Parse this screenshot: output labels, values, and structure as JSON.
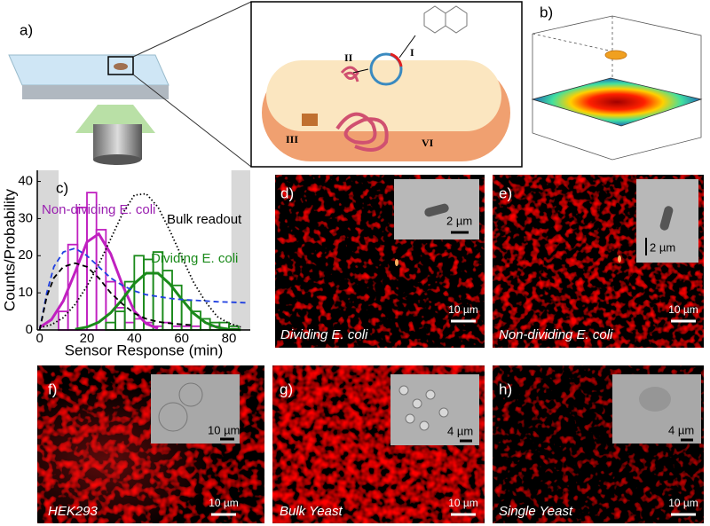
{
  "panels": {
    "a": {
      "label": "a)",
      "steps": [
        "I",
        "II",
        "III",
        "VI"
      ]
    },
    "b": {
      "label": "b)"
    },
    "c": {
      "label": "c)"
    },
    "d": {
      "label": "d)",
      "inset_scale": "2 µm",
      "scale": "10 µm",
      "caption": "Dividing E. coli"
    },
    "e": {
      "label": "e)",
      "inset_scale": "2 µm",
      "scale": "10 µm",
      "caption": "Non-dividing E. coli"
    },
    "f": {
      "label": "f)",
      "inset_scale": "10 µm",
      "scale": "10 µm",
      "caption": "HEK293"
    },
    "g": {
      "label": "g)",
      "inset_scale": "4 µm",
      "scale": "10 µm",
      "caption": "Bulk Yeast"
    },
    "h": {
      "label": "h)",
      "inset_scale": "4 µm",
      "scale": "10 µm",
      "caption": "Single Yeast"
    }
  },
  "chart_data": {
    "type": "histogram",
    "x_label": "Sensor Response (min)",
    "y_label": "Counts/Probability",
    "xlim": [
      -1,
      89
    ],
    "ylim": [
      0,
      43
    ],
    "xticks": [
      0,
      20,
      40,
      60,
      80
    ],
    "yticks": [
      0,
      10,
      20,
      30,
      40
    ],
    "shaded": [
      [
        -1,
        8
      ],
      [
        81,
        89
      ]
    ],
    "bins": [
      8,
      12,
      16,
      20,
      24,
      28,
      32,
      36,
      40,
      44,
      48,
      52,
      56,
      60,
      64,
      68,
      72,
      76,
      80,
      84
    ],
    "series": [
      {
        "color": "#c020c0",
        "values": [
          5,
          23,
          33,
          37,
          27,
          13,
          6,
          2,
          3,
          2,
          1,
          2,
          1,
          1,
          1,
          0,
          1,
          0,
          0
        ]
      },
      {
        "color": "#1a8a1a",
        "values": [
          0,
          0,
          0,
          0,
          0,
          2,
          5,
          13,
          20,
          19,
          21,
          16,
          12,
          8,
          5,
          3,
          2,
          2,
          1
        ]
      }
    ],
    "curves": [
      {
        "color": "#c020c0",
        "style": "solid",
        "x": [
          0,
          5,
          10,
          15,
          20,
          25,
          30,
          35,
          40,
          45,
          50
        ],
        "values": [
          0.7,
          2.8,
          7.8,
          15.6,
          23.7,
          25.9,
          20.5,
          12.1,
          5.1,
          1.7,
          0.4
        ]
      },
      {
        "color": "#1a8a1a",
        "style": "solid",
        "x": [
          15,
          20,
          25,
          30,
          35,
          40,
          45,
          50,
          55,
          60,
          65,
          70,
          75,
          80,
          85
        ],
        "values": [
          0.2,
          0.8,
          2.1,
          4.6,
          8.3,
          12.5,
          15.3,
          15.3,
          12.4,
          8.3,
          4.5,
          2.0,
          0.7,
          0.2,
          0.05
        ]
      },
      {
        "color": "#000000",
        "style": "dotted",
        "x": [
          0,
          5,
          10,
          15,
          20,
          25,
          30,
          35,
          40,
          45,
          50,
          55,
          60,
          65,
          70,
          75,
          80,
          85
        ],
        "values": [
          0.6,
          1.4,
          3.3,
          6.9,
          11.8,
          17.7,
          24.5,
          31.3,
          36.3,
          36.7,
          33.1,
          26.8,
          19.7,
          12.9,
          7.7,
          3.6,
          1.8,
          0.8
        ]
      },
      {
        "color": "#2040e0",
        "style": "dashed",
        "x": [
          0,
          3,
          6,
          10,
          15,
          20,
          25,
          30,
          35,
          40,
          45,
          50,
          55,
          60,
          65,
          70,
          75,
          80,
          88
        ],
        "values": [
          0,
          10,
          17,
          21,
          22,
          20,
          17,
          14,
          12,
          10.5,
          9.5,
          9,
          8.5,
          8.2,
          8,
          7.8,
          7.6,
          7.5,
          7.3
        ]
      },
      {
        "color": "#000000",
        "style": "dashed",
        "x": [
          0,
          3,
          6,
          10,
          15,
          20,
          25,
          30,
          35,
          40,
          45,
          50,
          55,
          60,
          65
        ],
        "values": [
          0,
          9,
          14,
          17,
          18,
          17,
          14,
          10,
          7,
          4.5,
          3,
          2.2,
          1.8,
          1.5,
          1.3
        ]
      }
    ],
    "annotations": [
      {
        "text": "Non-dividing E. coli",
        "color": "#9a20b0"
      },
      {
        "text": "Bulk readout",
        "color": "#000000"
      },
      {
        "text": "Dividing E. coli",
        "color": "#1a8a1a"
      }
    ]
  }
}
